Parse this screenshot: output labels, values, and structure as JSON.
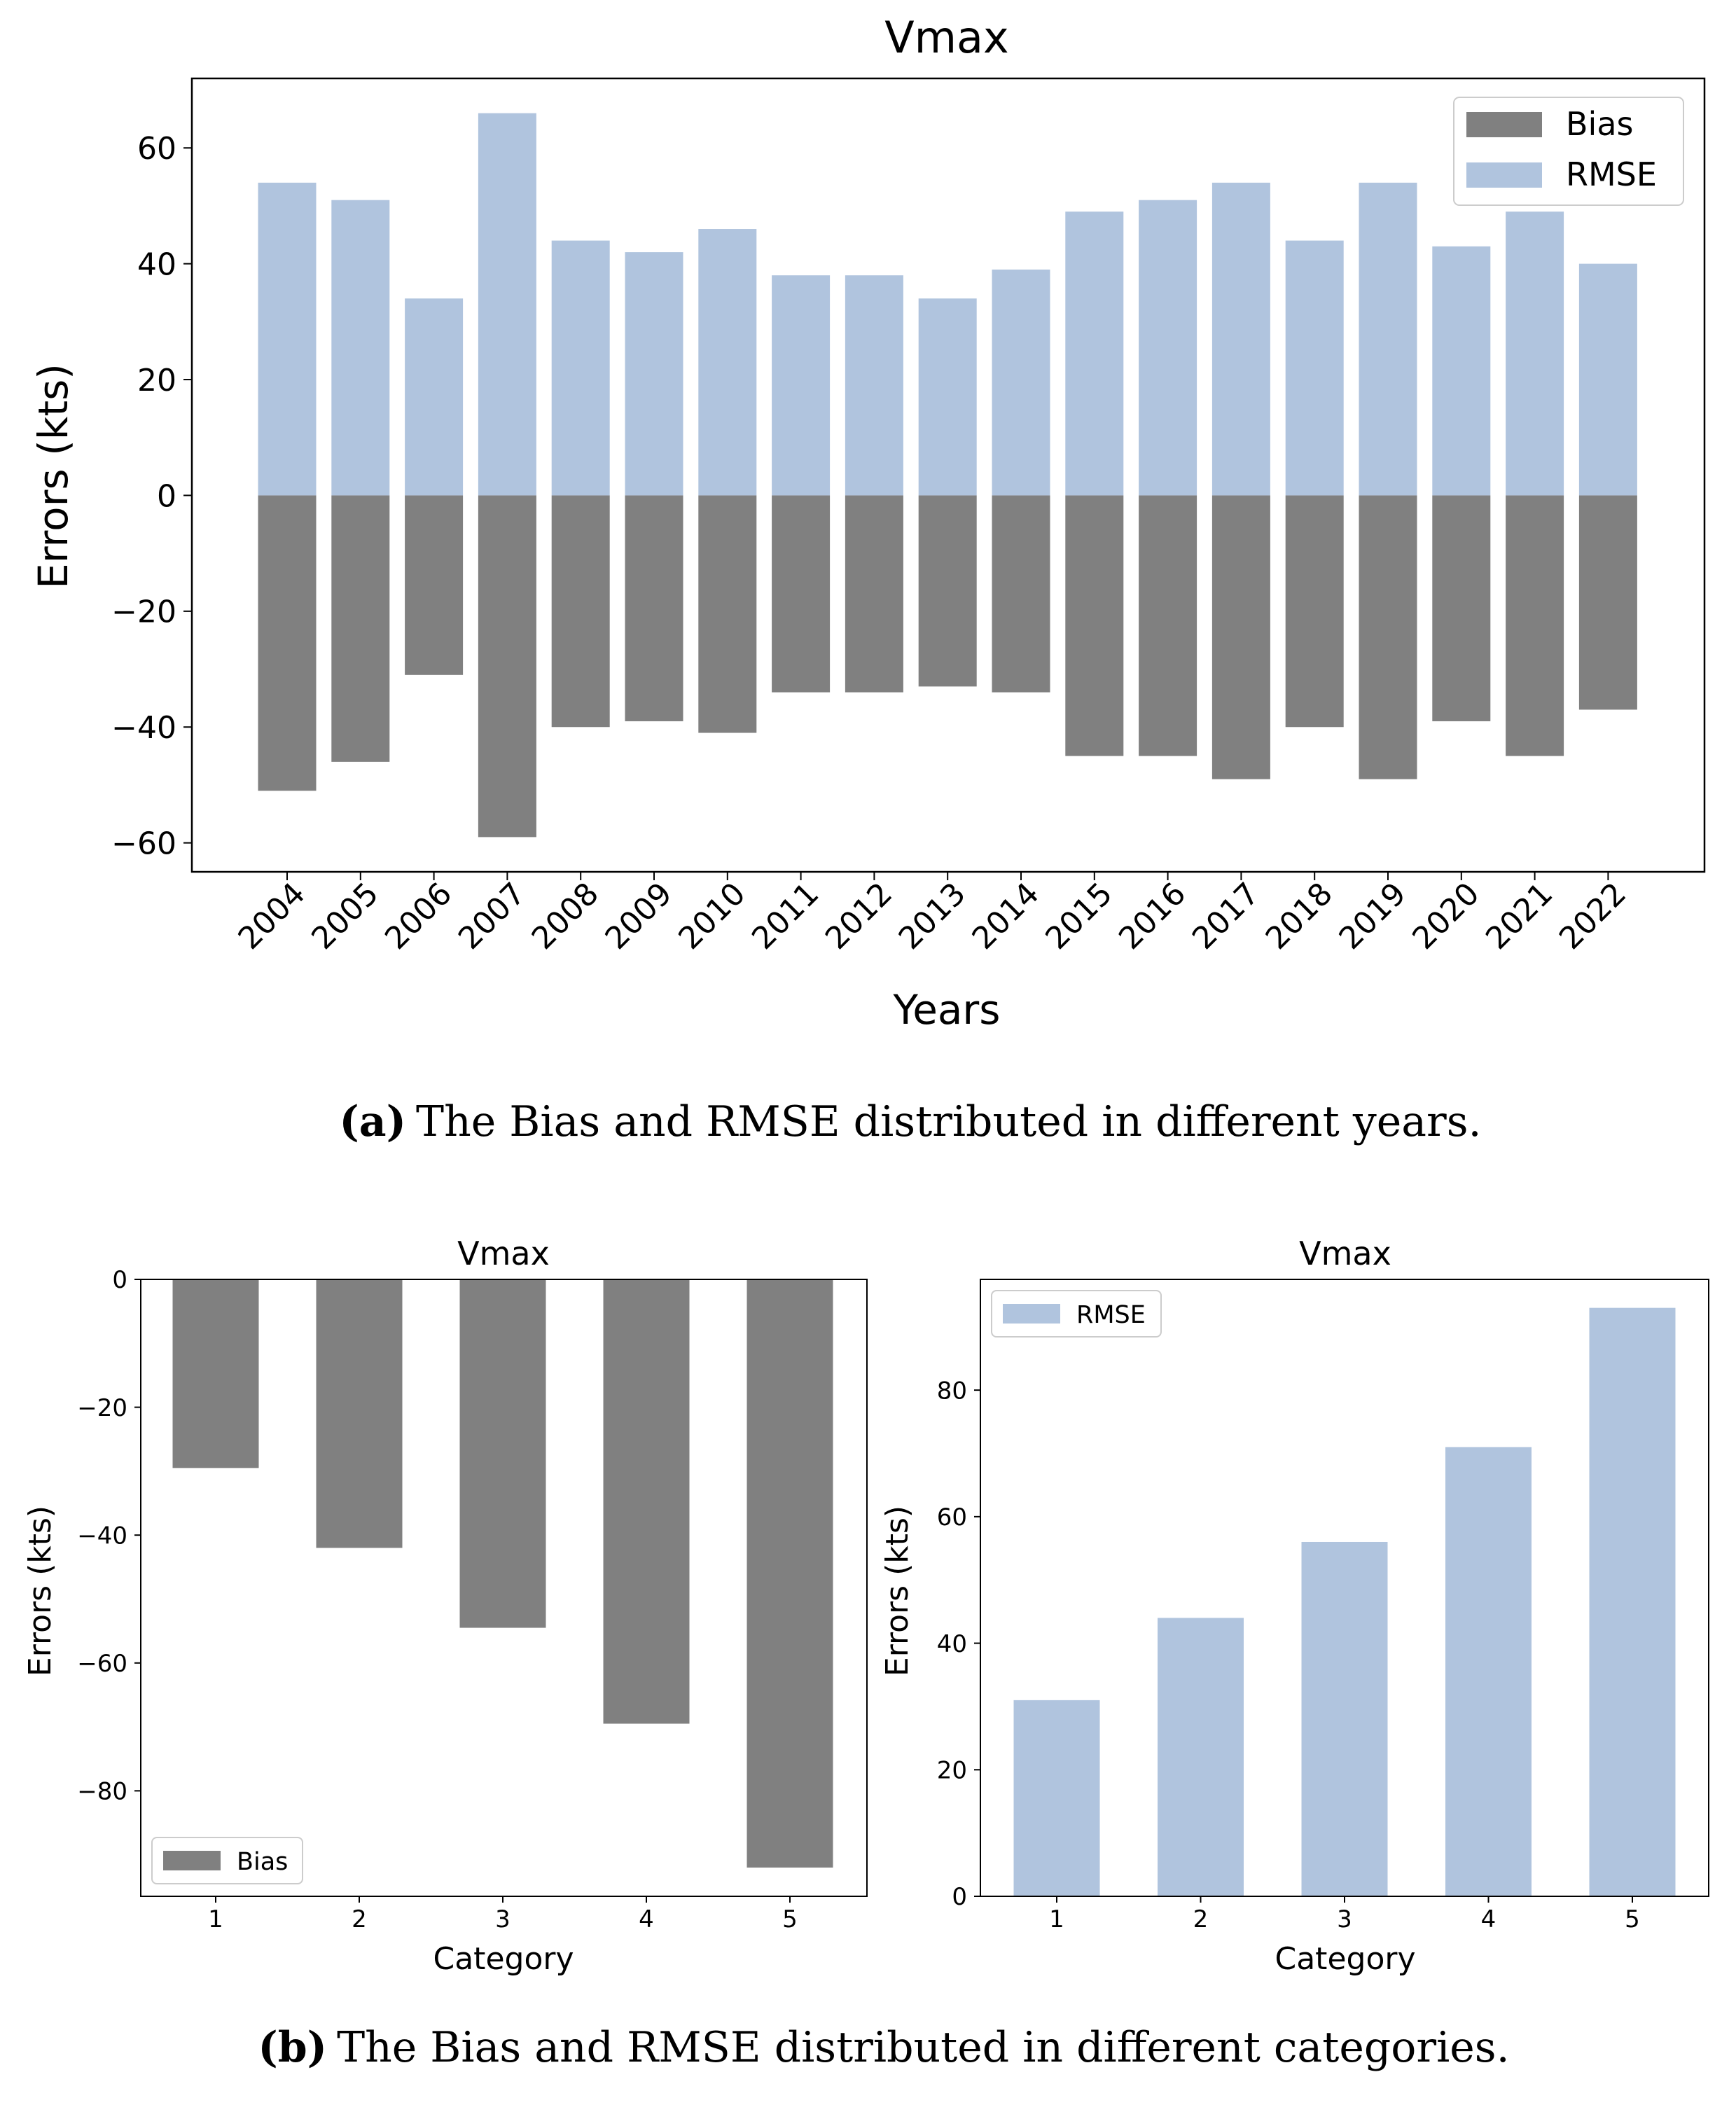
{
  "colors": {
    "bias": "#808080",
    "rmse": "#b0c4de",
    "axis": "#000000"
  },
  "chart_data": [
    {
      "type": "bar",
      "title": "Vmax",
      "xlabel": "Years",
      "ylabel": "Errors (kts)",
      "categories": [
        "2004",
        "2005",
        "2006",
        "2007",
        "2008",
        "2009",
        "2010",
        "2011",
        "2012",
        "2013",
        "2014",
        "2015",
        "2016",
        "2017",
        "2018",
        "2019",
        "2020",
        "2021",
        "2022"
      ],
      "series": [
        {
          "name": "Bias",
          "color": "#808080",
          "values": [
            -51,
            -46,
            -31,
            -59,
            -40,
            -39,
            -41,
            -34,
            -34,
            -33,
            -34,
            -45,
            -45,
            -49,
            -40,
            -49,
            -39,
            -45,
            -37
          ]
        },
        {
          "name": "RMSE",
          "color": "#b0c4de",
          "values": [
            54,
            51,
            34,
            66,
            44,
            42,
            46,
            38,
            38,
            34,
            39,
            49,
            51,
            54,
            44,
            54,
            43,
            49,
            40
          ]
        }
      ],
      "ylim": [
        -65,
        72
      ],
      "yticks": [
        -60,
        -40,
        -20,
        0,
        20,
        40,
        60
      ],
      "legend": "top-right",
      "grid": false,
      "caption": {
        "label": "(a)",
        "text": "The Bias and RMSE distributed in different years."
      }
    },
    {
      "type": "bar",
      "title": "Vmax",
      "xlabel": "Category",
      "ylabel": "Errors (kts)",
      "categories": [
        "1",
        "2",
        "3",
        "4",
        "5"
      ],
      "series": [
        {
          "name": "Bias",
          "color": "#808080",
          "values": [
            -29.5,
            -42,
            -54.5,
            -69.5,
            -92
          ]
        }
      ],
      "ylim": [
        -96.5,
        0
      ],
      "yticks": [
        -80,
        -60,
        -40,
        -20,
        0
      ],
      "legend": "lower-left",
      "grid": false
    },
    {
      "type": "bar",
      "title": "Vmax",
      "xlabel": "Category",
      "ylabel": "Errors (kts)",
      "categories": [
        "1",
        "2",
        "3",
        "4",
        "5"
      ],
      "series": [
        {
          "name": "RMSE",
          "color": "#b0c4de",
          "values": [
            31,
            44,
            56,
            71,
            93
          ]
        }
      ],
      "ylim": [
        0,
        97.5
      ],
      "yticks": [
        0,
        20,
        40,
        60,
        80
      ],
      "legend": "top-left",
      "grid": false,
      "caption": {
        "label": "(b)",
        "text": "The Bias and RMSE distributed in different categories."
      }
    }
  ]
}
